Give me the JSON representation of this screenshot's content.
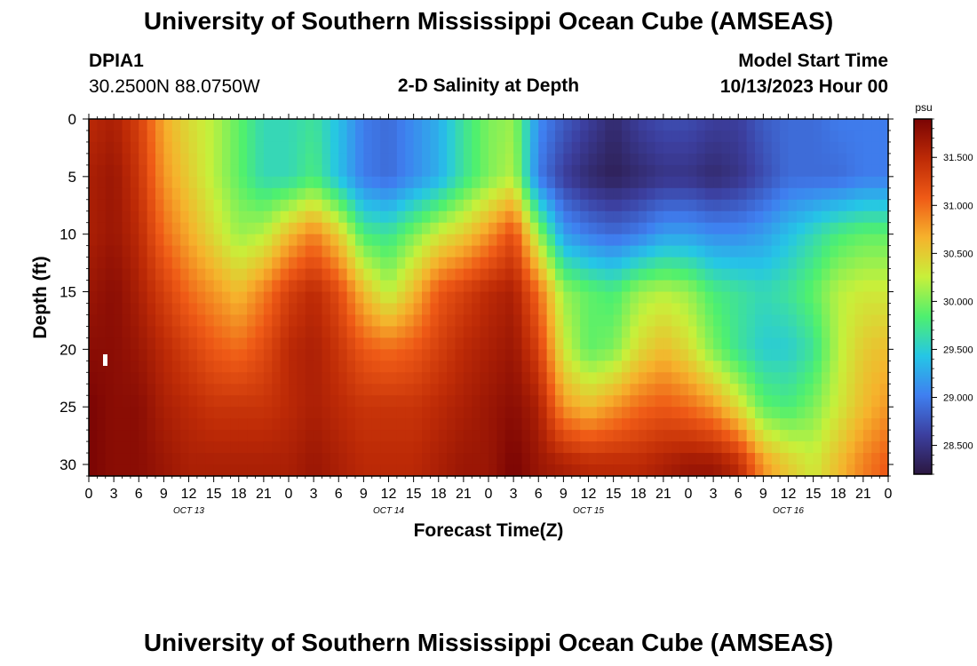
{
  "header": {
    "title": "University of Southern Mississippi Ocean Cube (AMSEAS)",
    "station_id": "DPIA1",
    "location": "30.2500N  88.0750W",
    "plot_title": "2-D Salinity at Depth",
    "model_start_label": "Model Start Time",
    "model_start_value": "10/13/2023 Hour 00"
  },
  "footer": {
    "title": "University of Southern Mississippi Ocean Cube (AMSEAS)"
  },
  "chart_data": {
    "type": "heatmap",
    "title": "2-D Salinity at Depth",
    "xlabel": "Forecast Time(Z)",
    "ylabel": "Depth (ft)",
    "x_tick_labels": [
      "0",
      "3",
      "6",
      "9",
      "12",
      "15",
      "18",
      "21",
      "0",
      "3",
      "6",
      "9",
      "12",
      "15",
      "18",
      "21",
      "0",
      "3",
      "6",
      "9",
      "12",
      "15",
      "18",
      "21",
      "0",
      "3",
      "6",
      "9",
      "12",
      "15",
      "18",
      "21",
      "0"
    ],
    "x_range_hours": [
      0,
      96
    ],
    "day_labels": [
      {
        "label": "OCT 13",
        "hour": 12
      },
      {
        "label": "OCT 14",
        "hour": 36
      },
      {
        "label": "OCT 15",
        "hour": 60
      },
      {
        "label": "OCT 16",
        "hour": 84
      }
    ],
    "y_ticks": [
      0,
      5,
      10,
      15,
      20,
      25,
      30
    ],
    "y_range_ft": [
      0,
      31
    ],
    "y_inverted": true,
    "colorbar": {
      "unit": "psu",
      "range": [
        28.2,
        31.9
      ],
      "ticks": [
        "28.500",
        "29.000",
        "29.500",
        "30.000",
        "30.500",
        "31.000",
        "31.500"
      ],
      "colormap": [
        "#2b1740",
        "#3c3f9f",
        "#3f7ff0",
        "#25c6e6",
        "#4ef06f",
        "#c8f03a",
        "#f6b22c",
        "#ef5a16",
        "#bd2a06",
        "#7a0404"
      ]
    },
    "salinity_estimate": {
      "rows_depth_ft": [
        0,
        5,
        10,
        15,
        20,
        25,
        30
      ],
      "cols_hour": [
        0,
        3,
        6,
        9,
        12,
        15,
        18,
        21,
        24,
        27,
        30,
        33,
        36,
        39,
        42,
        45,
        48,
        51,
        54,
        57,
        60,
        63,
        66,
        69,
        72,
        75,
        78,
        81,
        84,
        87,
        90,
        93,
        96
      ],
      "values_psu": [
        [
          31.5,
          31.6,
          31.3,
          30.7,
          30.4,
          30.2,
          29.9,
          29.6,
          29.6,
          29.7,
          29.4,
          29.0,
          28.9,
          29.1,
          29.3,
          29.7,
          30.0,
          30.1,
          29.1,
          28.8,
          28.6,
          28.4,
          28.6,
          28.7,
          28.7,
          28.6,
          28.6,
          28.8,
          28.9,
          28.9,
          29.0,
          29.0,
          29.0
        ],
        [
          31.6,
          31.7,
          31.4,
          30.8,
          30.5,
          30.2,
          29.9,
          29.6,
          29.6,
          29.8,
          29.4,
          29.0,
          28.9,
          29.1,
          29.3,
          29.7,
          30.0,
          30.2,
          29.0,
          28.6,
          28.4,
          28.3,
          28.4,
          28.5,
          28.5,
          28.4,
          28.5,
          28.7,
          28.9,
          28.9,
          28.9,
          29.0,
          29.0
        ],
        [
          31.6,
          31.7,
          31.5,
          31.0,
          30.7,
          30.4,
          30.1,
          30.2,
          30.6,
          30.9,
          30.5,
          29.8,
          29.7,
          30.0,
          30.3,
          30.5,
          30.8,
          31.2,
          30.1,
          29.2,
          29.0,
          28.9,
          29.0,
          29.2,
          29.2,
          29.1,
          29.1,
          29.2,
          29.4,
          29.6,
          29.8,
          29.9,
          29.9
        ],
        [
          31.7,
          31.8,
          31.6,
          31.3,
          31.0,
          30.8,
          30.6,
          30.9,
          31.3,
          31.5,
          31.2,
          30.6,
          30.2,
          30.6,
          31.1,
          31.3,
          31.5,
          31.6,
          31.0,
          30.1,
          29.9,
          29.8,
          30.1,
          30.2,
          30.1,
          29.8,
          29.7,
          29.6,
          29.7,
          29.9,
          30.2,
          30.3,
          30.3
        ],
        [
          31.8,
          31.8,
          31.7,
          31.5,
          31.3,
          31.1,
          31.0,
          31.2,
          31.5,
          31.6,
          31.4,
          31.1,
          31.0,
          31.1,
          31.3,
          31.5,
          31.6,
          31.7,
          31.3,
          30.3,
          29.9,
          30.0,
          30.4,
          30.6,
          30.4,
          30.0,
          29.7,
          29.5,
          29.5,
          29.7,
          30.2,
          30.5,
          30.6
        ],
        [
          31.9,
          31.8,
          31.8,
          31.6,
          31.5,
          31.4,
          31.4,
          31.4,
          31.5,
          31.6,
          31.5,
          31.4,
          31.4,
          31.4,
          31.5,
          31.6,
          31.7,
          31.8,
          31.6,
          30.8,
          30.6,
          30.8,
          31.0,
          31.1,
          31.0,
          30.8,
          30.4,
          29.9,
          29.8,
          30.0,
          30.3,
          30.6,
          30.8
        ],
        [
          31.9,
          31.8,
          31.8,
          31.7,
          31.6,
          31.6,
          31.6,
          31.6,
          31.6,
          31.7,
          31.6,
          31.5,
          31.5,
          31.5,
          31.6,
          31.7,
          31.7,
          31.9,
          31.7,
          31.6,
          31.5,
          31.5,
          31.5,
          31.6,
          31.7,
          31.7,
          31.5,
          30.8,
          30.5,
          30.3,
          30.6,
          30.9,
          31.1
        ]
      ]
    }
  }
}
